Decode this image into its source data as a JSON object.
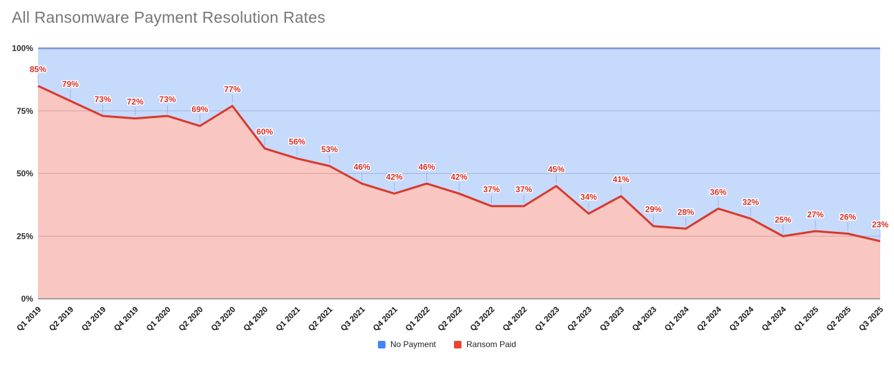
{
  "page": {
    "title": "All Ransomware Payment Resolution Rates"
  },
  "chart_data": {
    "type": "area",
    "stacked": true,
    "title": "All Ransomware Payment Resolution Rates",
    "categories": [
      "Q1 2019",
      "Q2 2019",
      "Q3 2019",
      "Q4 2019",
      "Q1 2020",
      "Q2 2020",
      "Q3 2020",
      "Q4 2020",
      "Q1 2021",
      "Q2 2021",
      "Q3 2021",
      "Q4 2021",
      "Q1 2022",
      "Q2 2022",
      "Q3 2022",
      "Q4 2022",
      "Q1 2023",
      "Q2 2023",
      "Q3 2023",
      "Q4 2023",
      "Q1 2024",
      "Q2 2024",
      "Q3 2024",
      "Q4 2024",
      "Q1 2025",
      "Q2 2025",
      "Q3 2025"
    ],
    "series": [
      {
        "name": "No Payment",
        "color": "#4285f4",
        "fill": "rgba(66,133,244,0.30)",
        "line_color": "#8299cc",
        "values": [
          15,
          21,
          27,
          28,
          27,
          31,
          23,
          40,
          44,
          47,
          54,
          58,
          54,
          58,
          63,
          63,
          55,
          66,
          59,
          71,
          72,
          64,
          68,
          75,
          73,
          74,
          77
        ]
      },
      {
        "name": "Ransom Paid",
        "color": "#ea4335",
        "fill": "rgba(234,67,53,0.30)",
        "line_color": "#d8392c",
        "values": [
          85,
          79,
          73,
          72,
          73,
          69,
          77,
          60,
          56,
          53,
          46,
          42,
          46,
          42,
          37,
          37,
          45,
          34,
          41,
          29,
          28,
          36,
          32,
          25,
          27,
          26,
          23
        ],
        "annotations": [
          "85%",
          "79%",
          "73%",
          "72%",
          "73%",
          "69%",
          "77%",
          "60%",
          "56%",
          "53%",
          "46%",
          "42%",
          "46%",
          "42%",
          "37%",
          "37%",
          "45%",
          "34%",
          "41%",
          "29%",
          "28%",
          "36%",
          "32%",
          "25%",
          "27%",
          "26%",
          "23%"
        ],
        "annotation_color": "#d93025"
      }
    ],
    "y_axis": {
      "range": [
        0,
        100
      ],
      "ticks": [
        {
          "label": "0%",
          "value": 0
        },
        {
          "label": "25%",
          "value": 25
        },
        {
          "label": "50%",
          "value": 50
        },
        {
          "label": "75%",
          "value": 75
        },
        {
          "label": "100%",
          "value": 100
        }
      ],
      "gridline_color": "#cccccc",
      "baseline_color": "#888888"
    },
    "x_axis": {
      "label_rotation_deg": -45
    },
    "grid": true,
    "legend_position": "bottom"
  },
  "legend": {
    "items": [
      {
        "label": "No Payment",
        "color": "#4285f4"
      },
      {
        "label": "Ransom Paid",
        "color": "#ea4335"
      }
    ]
  }
}
